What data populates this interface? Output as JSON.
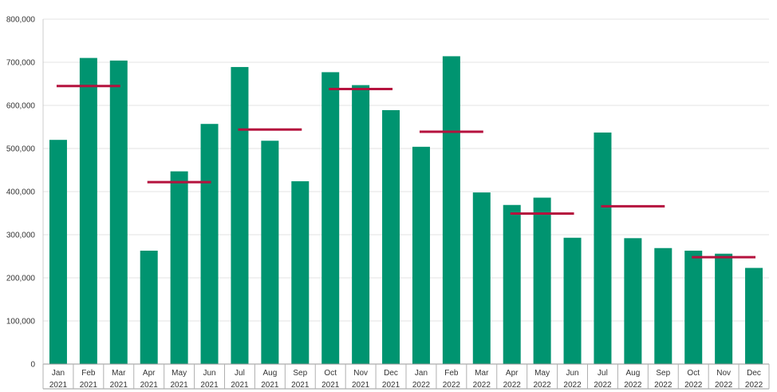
{
  "chart_data": {
    "type": "bar",
    "title": "",
    "xlabel": "",
    "ylabel": "",
    "ylim": [
      0,
      800000
    ],
    "yticks": [
      0,
      100000,
      200000,
      300000,
      400000,
      500000,
      600000,
      700000,
      800000
    ],
    "ytick_labels": [
      "0",
      "100,000",
      "200,000",
      "300,000",
      "400,000",
      "500,000",
      "600,000",
      "700,000",
      "800,000"
    ],
    "grid": true,
    "categories": [
      {
        "month": "Jan",
        "year": "2021"
      },
      {
        "month": "Feb",
        "year": "2021"
      },
      {
        "month": "Mar",
        "year": "2021"
      },
      {
        "month": "Apr",
        "year": "2021"
      },
      {
        "month": "May",
        "year": "2021"
      },
      {
        "month": "Jun",
        "year": "2021"
      },
      {
        "month": "Jul",
        "year": "2021"
      },
      {
        "month": "Aug",
        "year": "2021"
      },
      {
        "month": "Sep",
        "year": "2021"
      },
      {
        "month": "Oct",
        "year": "2021"
      },
      {
        "month": "Nov",
        "year": "2021"
      },
      {
        "month": "Dec",
        "year": "2021"
      },
      {
        "month": "Jan",
        "year": "2022"
      },
      {
        "month": "Feb",
        "year": "2022"
      },
      {
        "month": "Mar",
        "year": "2022"
      },
      {
        "month": "Apr",
        "year": "2022"
      },
      {
        "month": "May",
        "year": "2022"
      },
      {
        "month": "Jun",
        "year": "2022"
      },
      {
        "month": "Jul",
        "year": "2022"
      },
      {
        "month": "Aug",
        "year": "2022"
      },
      {
        "month": "Sep",
        "year": "2022"
      },
      {
        "month": "Oct",
        "year": "2022"
      },
      {
        "month": "Nov",
        "year": "2022"
      },
      {
        "month": "Dec",
        "year": "2022"
      }
    ],
    "series": [
      {
        "type": "bar",
        "color": "#009470",
        "values": [
          520000,
          710000,
          704000,
          263000,
          447000,
          557000,
          689000,
          518000,
          424000,
          677000,
          647000,
          589000,
          504000,
          714000,
          398000,
          369000,
          386000,
          293000,
          537000,
          292000,
          269000,
          263000,
          256000,
          223000
        ]
      },
      {
        "type": "quarter-average-line",
        "color": "#B5123E",
        "segments": [
          {
            "from": "Jan 2021",
            "to": "Mar 2021",
            "value": 645000
          },
          {
            "from": "Apr 2021",
            "to": "Jun 2021",
            "value": 422000
          },
          {
            "from": "Jul 2021",
            "to": "Sep 2021",
            "value": 544000
          },
          {
            "from": "Oct 2021",
            "to": "Dec 2021",
            "value": 638000
          },
          {
            "from": "Jan 2022",
            "to": "Mar 2022",
            "value": 539000
          },
          {
            "from": "Apr 2022",
            "to": "Jun 2022",
            "value": 349000
          },
          {
            "from": "Jul 2022",
            "to": "Sep 2022",
            "value": 366000
          },
          {
            "from": "Oct 2022",
            "to": "Dec 2022",
            "value": 248000
          }
        ]
      }
    ]
  }
}
